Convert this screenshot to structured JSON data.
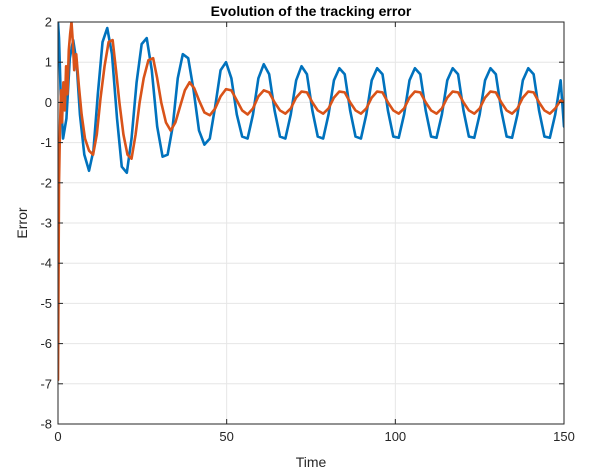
{
  "chart_data": {
    "type": "line",
    "title": "Evolution of the tracking error",
    "xlabel": "Time",
    "ylabel": "Error",
    "xlim": [
      0,
      150
    ],
    "ylim": [
      -8,
      2
    ],
    "xticks": [
      "0",
      "50",
      "100",
      "150"
    ],
    "xtick_values": [
      0,
      50,
      100,
      150
    ],
    "yticks": [
      "-8",
      "-7",
      "-6",
      "-5",
      "-4",
      "-3",
      "-2",
      "-1",
      "0",
      "1",
      "2"
    ],
    "ytick_values": [
      -8,
      -7,
      -6,
      -5,
      -4,
      -3,
      -2,
      -1,
      0,
      1,
      2
    ],
    "grid": true,
    "legend": "none",
    "series": [
      {
        "color": "#0072BD",
        "x": [
          0,
          0.3,
          0.8,
          1.5,
          2.5,
          3.5,
          4.5,
          5.5,
          6.5,
          7.8,
          9.2,
          10.5,
          11.8,
          13.2,
          14.6,
          16.0,
          17.5,
          18.9,
          20.4,
          21.8,
          23.3,
          24.8,
          26.3,
          27.8,
          29.4,
          31.0,
          32.5,
          34.0,
          35.5,
          37.0,
          38.6,
          40.2,
          41.8,
          43.4,
          45.0,
          46.6,
          48.2,
          49.8,
          51.4,
          53.0,
          54.6,
          56.2,
          57.8,
          59.4,
          61.0,
          62.6,
          64.2,
          65.8,
          67.4,
          69.0,
          70.6,
          72.2,
          73.8,
          75.4,
          77.0,
          78.6,
          80.2,
          81.8,
          83.4,
          85.0,
          86.6,
          88.2,
          89.8,
          91.4,
          93.0,
          94.6,
          96.2,
          97.8,
          99.4,
          101.0,
          102.6,
          104.2,
          105.8,
          107.4,
          109.0,
          110.6,
          112.2,
          113.8,
          115.4,
          117.0,
          118.6,
          120.2,
          121.8,
          123.4,
          125.0,
          126.6,
          128.2,
          129.8,
          131.4,
          133.0,
          134.6,
          136.2,
          137.8,
          139.4,
          141.0,
          142.6,
          144.2,
          145.8,
          147.4,
          149.0,
          150.0
        ],
        "y": [
          2.0,
          1.6,
          0.2,
          -0.9,
          -0.4,
          1.1,
          1.55,
          1.0,
          -0.3,
          -1.3,
          -1.7,
          -1.2,
          0.2,
          1.5,
          1.85,
          1.2,
          -0.4,
          -1.6,
          -1.75,
          -0.9,
          0.5,
          1.45,
          1.6,
          0.8,
          -0.6,
          -1.35,
          -1.3,
          -0.6,
          0.6,
          1.2,
          1.1,
          0.3,
          -0.7,
          -1.05,
          -0.9,
          -0.1,
          0.8,
          1.0,
          0.6,
          -0.3,
          -0.85,
          -0.9,
          -0.3,
          0.6,
          0.95,
          0.7,
          -0.2,
          -0.85,
          -0.9,
          -0.3,
          0.55,
          0.9,
          0.7,
          -0.2,
          -0.85,
          -0.9,
          -0.3,
          0.55,
          0.85,
          0.7,
          -0.2,
          -0.85,
          -0.9,
          -0.3,
          0.55,
          0.85,
          0.7,
          -0.2,
          -0.85,
          -0.88,
          -0.3,
          0.55,
          0.85,
          0.7,
          -0.2,
          -0.85,
          -0.88,
          -0.3,
          0.55,
          0.85,
          0.7,
          -0.2,
          -0.85,
          -0.88,
          -0.3,
          0.55,
          0.85,
          0.7,
          -0.2,
          -0.85,
          -0.88,
          -0.3,
          0.55,
          0.85,
          0.7,
          -0.2,
          -0.85,
          -0.88,
          -0.3,
          0.55,
          -0.6
        ]
      },
      {
        "color": "#D95319",
        "x": [
          0,
          0.3,
          0.6,
          0.9,
          1.2,
          1.6,
          2.0,
          2.4,
          2.8,
          3.2,
          3.6,
          4.0,
          4.4,
          4.8,
          5.4,
          6.2,
          7.0,
          8.0,
          9.2,
          10.4,
          11.5,
          12.6,
          13.8,
          15.0,
          16.2,
          17.2,
          18.2,
          19.4,
          20.6,
          21.8,
          23.0,
          24.2,
          25.4,
          26.8,
          28.2,
          29.4,
          30.6,
          32.0,
          33.4,
          34.8,
          36.2,
          37.6,
          39.0,
          40.4,
          41.8,
          43.4,
          45.0,
          46.6,
          48.2,
          49.8,
          51.4,
          53.0,
          54.6,
          56.2,
          57.8,
          59.4,
          61.0,
          62.6,
          64.2,
          65.8,
          67.4,
          69.0,
          70.6,
          72.2,
          73.8,
          75.4,
          77.0,
          78.6,
          80.2,
          81.8,
          83.4,
          85.0,
          86.6,
          88.2,
          89.8,
          91.4,
          93.0,
          94.6,
          96.2,
          97.8,
          99.4,
          101.0,
          102.6,
          104.2,
          105.8,
          107.4,
          109.0,
          110.6,
          112.2,
          113.8,
          115.4,
          117.0,
          118.6,
          120.2,
          121.8,
          123.4,
          125.0,
          126.6,
          128.2,
          129.8,
          131.4,
          133.0,
          134.6,
          136.2,
          137.8,
          139.4,
          141.0,
          142.6,
          144.2,
          145.8,
          147.4,
          149.0,
          150.0
        ],
        "y": [
          -6.9,
          -2.0,
          -0.6,
          0.3,
          -0.5,
          0.5,
          -0.2,
          0.9,
          0.2,
          1.3,
          1.7,
          2.0,
          1.5,
          0.8,
          1.2,
          0.4,
          -0.3,
          -0.9,
          -1.2,
          -1.3,
          -0.8,
          0.1,
          0.9,
          1.5,
          1.55,
          0.8,
          0.0,
          -0.8,
          -1.3,
          -1.4,
          -0.8,
          0.0,
          0.6,
          1.05,
          1.1,
          0.6,
          0.0,
          -0.5,
          -0.7,
          -0.5,
          -0.1,
          0.3,
          0.5,
          0.35,
          0.05,
          -0.25,
          -0.32,
          -0.15,
          0.15,
          0.33,
          0.3,
          0.05,
          -0.2,
          -0.3,
          -0.15,
          0.15,
          0.3,
          0.25,
          0.0,
          -0.2,
          -0.28,
          -0.15,
          0.12,
          0.27,
          0.25,
          0.0,
          -0.2,
          -0.28,
          -0.15,
          0.12,
          0.27,
          0.25,
          0.0,
          -0.2,
          -0.28,
          -0.15,
          0.12,
          0.27,
          0.25,
          0.0,
          -0.2,
          -0.28,
          -0.15,
          0.12,
          0.27,
          0.25,
          0.0,
          -0.2,
          -0.28,
          -0.15,
          0.12,
          0.27,
          0.25,
          0.0,
          -0.2,
          -0.28,
          -0.15,
          0.12,
          0.27,
          0.25,
          0.0,
          -0.2,
          -0.28,
          -0.15,
          0.12,
          0.27,
          0.25,
          0.0,
          -0.2,
          -0.28,
          -0.15,
          0.05,
          0.0
        ]
      }
    ]
  }
}
